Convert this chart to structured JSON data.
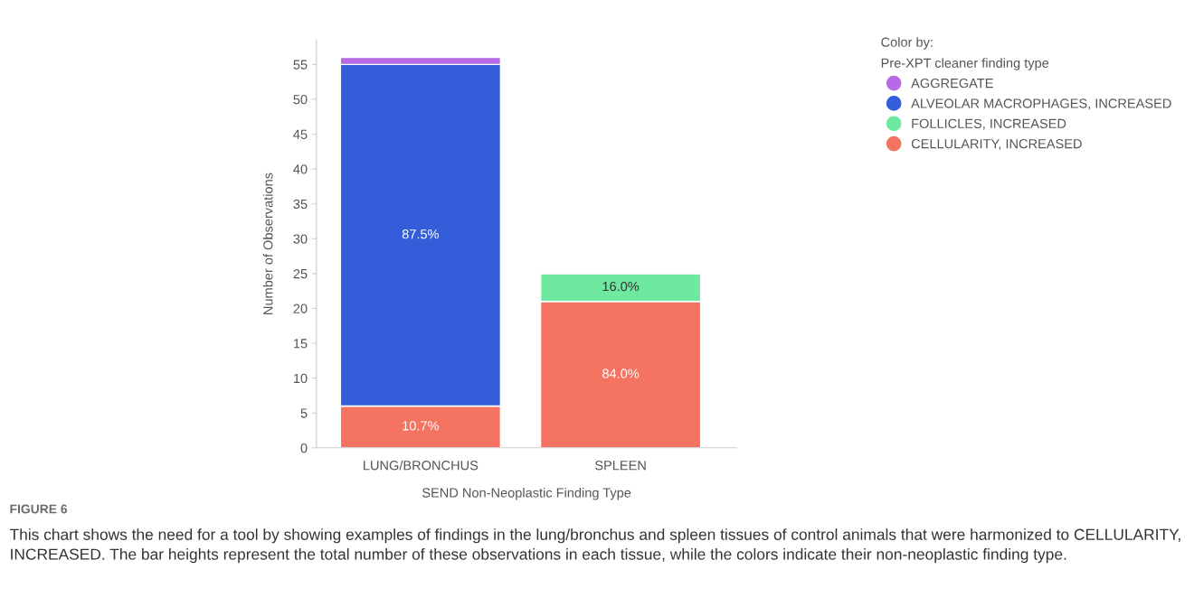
{
  "chart_data": {
    "type": "bar",
    "stacked": true,
    "categories": [
      "LUNG/BRONCHUS",
      "SPLEEN"
    ],
    "xlabel": "SEND Non-Neoplastic Finding Type",
    "ylabel": "Number of Observations",
    "legend_title": "Color by:\nPre-XPT cleaner finding type",
    "legend": "right",
    "series": [
      {
        "name": "CELLULARITY, INCREASED",
        "color": "#f47461",
        "values": [
          6,
          21
        ]
      },
      {
        "name": "FOLLICLES, INCREASED",
        "color": "#6fe8a0",
        "values": [
          null,
          4
        ]
      },
      {
        "name": "ALVEOLAR MACROPHAGES, INCREASED",
        "color": "#345ed9",
        "values": [
          49,
          null
        ]
      },
      {
        "name": "AGGREGATE",
        "color": "#b76ae6",
        "values": [
          1,
          null
        ]
      }
    ],
    "ylim": [
      0,
      58.5
    ],
    "yticks": [
      0,
      5,
      10,
      15,
      20,
      25,
      30,
      35,
      40,
      45,
      50,
      55
    ],
    "grid": false,
    "annotations": [
      {
        "text": "10.7%",
        "x": "LUNG/BRONCHUS",
        "y": 6
      },
      "84.0%",
      "87.5%",
      {
        "text": "16.0%",
        "x": "SPLEEN",
        "y": 25
      },
      "FIGURE 6",
      "This chart shows the need for a tool by showing examples of findings in the lung/bronchus and spleen tissues of control animals that were harmonized to CELLULARITY, INCREASED. The bar heights represent the total number of these observations in each tissue, while the colors indicate their non-neoplastic finding type."
    ]
  }
}
